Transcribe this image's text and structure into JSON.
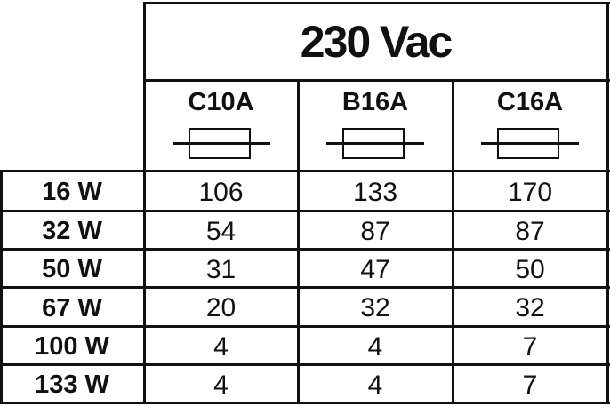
{
  "header": {
    "voltage": "230 Vac"
  },
  "columns": [
    {
      "label": "C10A",
      "icon": "fuse-icon"
    },
    {
      "label": "B16A",
      "icon": "fuse-icon"
    },
    {
      "label": "C16A",
      "icon": "fuse-icon"
    }
  ],
  "rows": [
    {
      "label": "16 W",
      "values": [
        "106",
        "133",
        "170"
      ]
    },
    {
      "label": "32 W",
      "values": [
        "54",
        "87",
        "87"
      ]
    },
    {
      "label": "50 W",
      "values": [
        "31",
        "47",
        "50"
      ]
    },
    {
      "label": "67 W",
      "values": [
        "20",
        "32",
        "32"
      ]
    },
    {
      "label": "100 W",
      "values": [
        "4",
        "4",
        "7"
      ]
    },
    {
      "label": "133 W",
      "values": [
        "4",
        "4",
        "7"
      ]
    }
  ]
}
